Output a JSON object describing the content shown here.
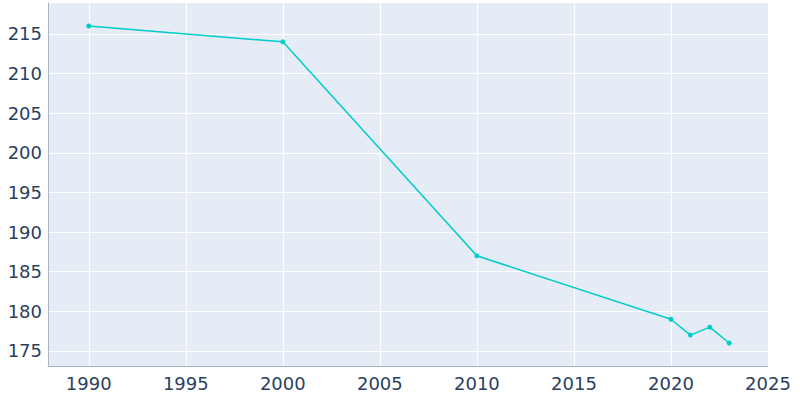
{
  "chart_data": {
    "type": "line",
    "x": [
      1990,
      2000,
      2010,
      2020,
      2021,
      2022,
      2023
    ],
    "values": [
      216,
      214,
      187,
      179,
      177,
      178,
      176
    ],
    "color": "#00cccc",
    "marker": "circle",
    "xlim": [
      1987.9,
      2025
    ],
    "xticks": [
      1990,
      1995,
      2000,
      2005,
      2010,
      2015,
      2020,
      2025
    ],
    "ylim": [
      173.1,
      218.9
    ],
    "yticks": [
      175,
      180,
      185,
      190,
      195,
      200,
      205,
      210,
      215
    ],
    "grid": true
  }
}
